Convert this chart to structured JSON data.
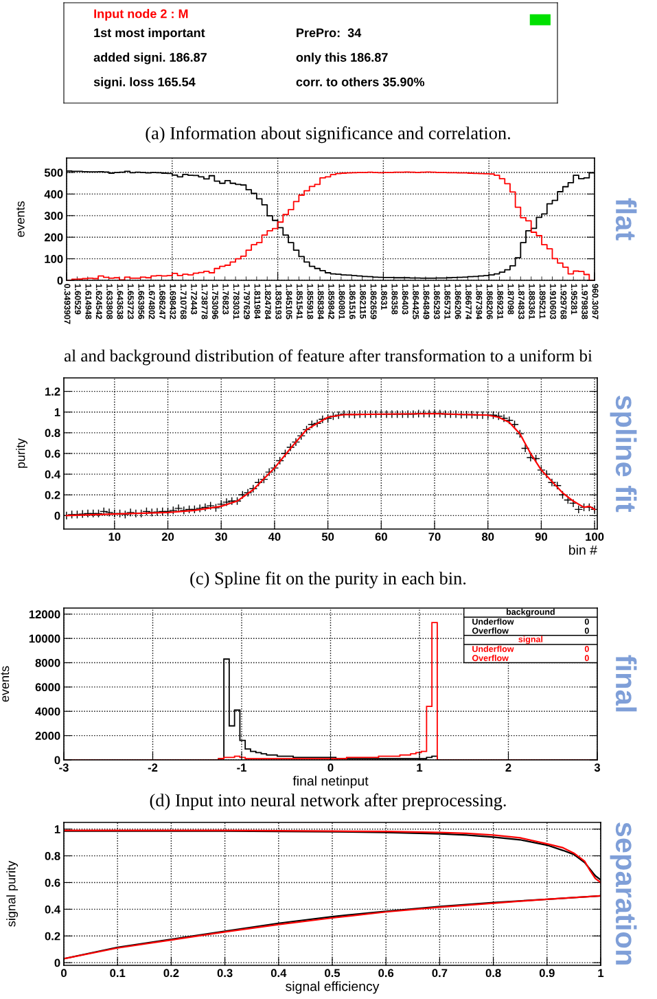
{
  "chart_data": [
    {
      "type": "other",
      "title": "Input node 2 : M",
      "annotations": [
        "(a) Information about significance and correlation.",
        "1st most important",
        "PrePro:  34",
        "added signi. 186.87",
        "only this 186.87",
        "signi. loss 165.54",
        "corr. to others 35.90%"
      ]
    },
    {
      "type": "step",
      "ylabel": "events",
      "categories": [
        "0.3493907",
        null,
        "1.60529",
        null,
        "1.614948",
        null,
        "1.624542",
        null,
        "1.633808",
        null,
        "1.643638",
        null,
        "1.653723",
        null,
        "1.663956",
        null,
        "1.674802",
        null,
        "1.686247",
        null,
        "1.698432",
        null,
        "1.710768",
        null,
        "1.72443",
        null,
        "1.738778",
        null,
        "1.753096",
        null,
        "1.76823",
        null,
        "1.783031",
        null,
        "1.797629",
        null,
        "1.811984",
        null,
        "1.824784",
        null,
        "1.836193",
        null,
        "1.845105",
        null,
        "1.851541",
        null,
        "1.855918",
        null,
        "1.858384",
        null,
        "1.859842",
        null,
        "1.860801",
        null,
        "1.861516",
        null,
        "1.862115",
        null,
        "1.862659",
        null,
        "1.8631",
        null,
        "1.86358",
        null,
        "1.86403",
        null,
        "1.864425",
        null,
        "1.864849",
        null,
        "1.865293",
        null,
        "1.865731",
        null,
        "1.866206",
        null,
        "1.866774",
        null,
        "1.867394",
        null,
        "1.868206",
        null,
        "1.869231",
        null,
        "1.87098",
        null,
        "1.874833",
        null,
        "1.883361",
        null,
        "1.895211",
        null,
        "1.910603",
        null,
        "1.929768",
        null,
        "1.95281",
        null,
        "1.979838",
        null,
        "960.3097"
      ],
      "series": [
        {
          "color": "#000000",
          "values": [
            507,
            505,
            505,
            504,
            503,
            503,
            504,
            502,
            497,
            500,
            501,
            505,
            499,
            501,
            500,
            498,
            500,
            499,
            497,
            496,
            488,
            480,
            491,
            487,
            486,
            480,
            470,
            485,
            460,
            450,
            462,
            450,
            445,
            442,
            420,
            403,
            378,
            350,
            299,
            278,
            244,
            210,
            175,
            140,
            110,
            85,
            65,
            55,
            45,
            35,
            30,
            28,
            25,
            24,
            22,
            20,
            18,
            17,
            15,
            14,
            13,
            13,
            12,
            12,
            12,
            11,
            11,
            10,
            10,
            10,
            11,
            11,
            12,
            13,
            14,
            15,
            17,
            18,
            20,
            22,
            25,
            30,
            38,
            49,
            67,
            105,
            175,
            230,
            241,
            292,
            308,
            355,
            371,
            411,
            434,
            453,
            487,
            471,
            475,
            498,
            498
          ]
        },
        {
          "color": "#ff0000",
          "values": [
            0,
            5,
            6,
            8,
            10,
            8,
            20,
            14,
            10,
            12,
            2,
            15,
            10,
            10,
            15,
            12,
            20,
            22,
            20,
            22,
            32,
            22,
            28,
            25,
            33,
            36,
            42,
            35,
            55,
            65,
            70,
            85,
            100,
            112,
            140,
            165,
            175,
            210,
            230,
            240,
            270,
            305,
            328,
            365,
            395,
            415,
            435,
            445,
            475,
            480,
            490,
            495,
            497,
            498,
            499,
            500,
            500,
            501,
            500,
            499,
            500,
            500,
            501,
            501,
            502,
            501,
            500,
            501,
            502,
            501,
            500,
            500,
            499,
            499,
            498,
            498,
            497,
            496,
            495,
            494,
            493,
            487,
            471,
            448,
            410,
            339,
            290,
            276,
            223,
            207,
            165,
            146,
            101,
            80,
            61,
            30,
            43,
            41,
            27,
            0,
            0
          ]
        }
      ],
      "ylim": [
        0,
        567
      ],
      "yticks": [
        0,
        100,
        200,
        300,
        400,
        500
      ],
      "grid": true,
      "annotations": [
        "flat",
        "al and background distribution of feature after transformation to a uniform bi"
      ]
    },
    {
      "type": "scatter",
      "ylabel": "purity",
      "xlabel": "bin #",
      "marker": "cross",
      "xlim": [
        0.5,
        100.5
      ],
      "ylim": [
        -0.13,
        1.33
      ],
      "xticks": [
        10,
        20,
        30,
        40,
        50,
        60,
        70,
        80,
        90,
        100
      ],
      "yticks": [
        0,
        0.2,
        0.4,
        0.6,
        0.8,
        1,
        1.2
      ],
      "grid": true,
      "series": [
        {
          "color": "#000000",
          "x": [
            1,
            2,
            3,
            4,
            5,
            6,
            7,
            8,
            9,
            10,
            11,
            12,
            13,
            14,
            15,
            16,
            17,
            18,
            19,
            20,
            21,
            22,
            23,
            24,
            25,
            26,
            27,
            28,
            29,
            30,
            31,
            32,
            33,
            34,
            35,
            36,
            37,
            38,
            39,
            40,
            41,
            42,
            43,
            44,
            45,
            46,
            47,
            48,
            49,
            50,
            51,
            52,
            53,
            54,
            55,
            56,
            57,
            58,
            59,
            60,
            61,
            62,
            63,
            64,
            65,
            66,
            67,
            68,
            69,
            70,
            71,
            72,
            73,
            74,
            75,
            76,
            77,
            78,
            79,
            80,
            81,
            82,
            83,
            84,
            85,
            86,
            87,
            88,
            89,
            90,
            91,
            92,
            93,
            94,
            95,
            96,
            97,
            98,
            99,
            100
          ],
          "values": [
            0.0,
            0.01,
            0.01,
            0.015,
            0.02,
            0.02,
            0.02,
            0.04,
            0.03,
            0.02,
            0.02,
            0.01,
            0.03,
            0.02,
            0.02,
            0.04,
            0.03,
            0.035,
            0.04,
            0.04,
            0.05,
            0.07,
            0.05,
            0.06,
            0.06,
            0.07,
            0.08,
            0.095,
            0.075,
            0.11,
            0.13,
            0.14,
            0.14,
            0.2,
            0.22,
            0.26,
            0.32,
            0.35,
            0.42,
            0.46,
            0.53,
            0.6,
            0.66,
            0.71,
            0.77,
            0.83,
            0.88,
            0.89,
            0.93,
            0.94,
            0.96,
            0.97,
            0.98,
            0.98,
            0.975,
            0.98,
            0.98,
            0.98,
            0.98,
            0.98,
            0.98,
            0.98,
            0.98,
            0.98,
            0.98,
            0.98,
            0.985,
            0.985,
            0.985,
            0.985,
            0.985,
            0.98,
            0.98,
            0.98,
            0.975,
            0.975,
            0.975,
            0.97,
            0.97,
            0.97,
            0.97,
            0.96,
            0.94,
            0.92,
            0.88,
            0.79,
            0.65,
            0.56,
            0.55,
            0.44,
            0.4,
            0.32,
            0.29,
            0.2,
            0.15,
            0.12,
            0.06,
            0.08,
            0.08,
            0.06
          ]
        },
        {
          "type": "line",
          "marker": "none",
          "color": "#ff0000",
          "x": [
            1,
            10,
            20,
            25,
            30,
            33,
            36,
            40,
            43,
            46,
            50,
            53,
            60,
            70,
            80,
            82,
            84,
            86,
            88,
            90,
            92,
            94,
            96,
            98,
            99,
            100
          ],
          "values": [
            0,
            0.015,
            0.03,
            0.05,
            0.09,
            0.14,
            0.25,
            0.46,
            0.65,
            0.83,
            0.95,
            0.975,
            0.98,
            0.985,
            0.97,
            0.95,
            0.9,
            0.79,
            0.6,
            0.44,
            0.33,
            0.22,
            0.14,
            0.08,
            0.09,
            0.06
          ]
        }
      ],
      "annotations": [
        "spline fit",
        "(c) Spline fit on the purity in each bin."
      ]
    },
    {
      "type": "histogram",
      "xlabel": "final netinput",
      "ylabel": "events",
      "xlim": [
        -3,
        3
      ],
      "ylim": [
        0,
        12500
      ],
      "xticks": [
        -3,
        -2,
        -1,
        0,
        1,
        2,
        3
      ],
      "yticks": [
        0,
        2000,
        4000,
        6000,
        8000,
        10000,
        12000
      ],
      "grid": true,
      "legend": "top right",
      "bins": [
        -3,
        -1.26,
        -1.2,
        -1.14,
        -1.08,
        -1.02,
        -0.96,
        -0.9,
        -0.84,
        -0.78,
        -0.72,
        -0.66,
        -0.6,
        -0.54,
        -0.48,
        -0.42,
        -0.36,
        -0.3,
        -0.24,
        -0.18,
        -0.12,
        -0.06,
        0,
        0.06,
        0.12,
        0.18,
        0.24,
        0.3,
        0.36,
        0.42,
        0.48,
        0.54,
        0.6,
        0.66,
        0.72,
        0.78,
        0.84,
        0.9,
        0.96,
        1.02,
        1.08,
        1.14,
        1.2,
        1.26,
        3
      ],
      "series": [
        {
          "name": "background",
          "color": "#000000",
          "values": [
            0,
            100,
            8300,
            2800,
            4100,
            1600,
            900,
            700,
            600,
            500,
            400,
            400,
            300,
            300,
            300,
            200,
            200,
            200,
            200,
            200,
            200,
            200,
            200,
            100,
            100,
            100,
            100,
            100,
            100,
            100,
            100,
            100,
            100,
            100,
            100,
            100,
            100,
            100,
            100,
            100,
            200,
            300,
            0,
            0
          ]
        },
        {
          "name": "signal",
          "color": "#ff0000",
          "values": [
            0,
            100,
            200,
            200,
            300,
            200,
            100,
            100,
            100,
            100,
            100,
            100,
            100,
            100,
            100,
            100,
            100,
            100,
            100,
            100,
            100,
            100,
            100,
            100,
            100,
            200,
            200,
            200,
            200,
            200,
            200,
            300,
            300,
            300,
            300,
            400,
            400,
            500,
            600,
            700,
            4400,
            11300,
            0,
            0
          ]
        }
      ],
      "annotations": [
        "final",
        "(d) Input into neural network after preprocessing.",
        "Underflow",
        "0",
        "Overflow",
        "0",
        "Underflow",
        "0",
        "Overflow",
        "0"
      ]
    },
    {
      "type": "line",
      "xlabel": "signal efficiency",
      "ylabel": "signal purity",
      "xlim": [
        0,
        1
      ],
      "ylim": [
        -0.02,
        1.05
      ],
      "xticks": [
        0,
        0.1,
        0.2,
        0.3,
        0.4,
        0.5,
        0.6,
        0.7,
        0.8,
        0.9,
        1
      ],
      "yticks": [
        0,
        0.2,
        0.4,
        0.6,
        0.8,
        1
      ],
      "grid": true,
      "series": [
        {
          "color": "#000000",
          "x": [
            0,
            0.1,
            0.2,
            0.3,
            0.4,
            0.5,
            0.6,
            0.7,
            0.75,
            0.8,
            0.85,
            0.9,
            0.93,
            0.95,
            0.97,
            0.98,
            0.99,
            1.0
          ],
          "values": [
            0.985,
            0.985,
            0.985,
            0.985,
            0.983,
            0.98,
            0.975,
            0.965,
            0.955,
            0.94,
            0.92,
            0.88,
            0.84,
            0.81,
            0.75,
            0.7,
            0.65,
            0.62
          ]
        },
        {
          "color": "#ff0000",
          "x": [
            0,
            0.1,
            0.2,
            0.3,
            0.4,
            0.5,
            0.6,
            0.7,
            0.75,
            0.8,
            0.85,
            0.9,
            0.93,
            0.95,
            0.97,
            0.98,
            0.99,
            1.0
          ],
          "values": [
            0.99,
            0.99,
            0.99,
            0.99,
            0.988,
            0.985,
            0.982,
            0.975,
            0.968,
            0.955,
            0.935,
            0.89,
            0.86,
            0.82,
            0.76,
            0.69,
            0.63,
            0.6
          ]
        },
        {
          "color": "#000000",
          "x": [
            0,
            0.1,
            0.2,
            0.3,
            0.4,
            0.5,
            0.6,
            0.7,
            0.8,
            0.9,
            1.0
          ],
          "values": [
            0.03,
            0.115,
            0.175,
            0.235,
            0.295,
            0.345,
            0.385,
            0.42,
            0.45,
            0.475,
            0.5
          ]
        },
        {
          "color": "#ff0000",
          "x": [
            0,
            0.1,
            0.2,
            0.3,
            0.4,
            0.5,
            0.6,
            0.7,
            0.8,
            0.9,
            1.0
          ],
          "values": [
            0.03,
            0.11,
            0.17,
            0.23,
            0.285,
            0.335,
            0.38,
            0.415,
            0.445,
            0.475,
            0.5
          ]
        }
      ],
      "annotations": [
        "separation"
      ]
    }
  ]
}
